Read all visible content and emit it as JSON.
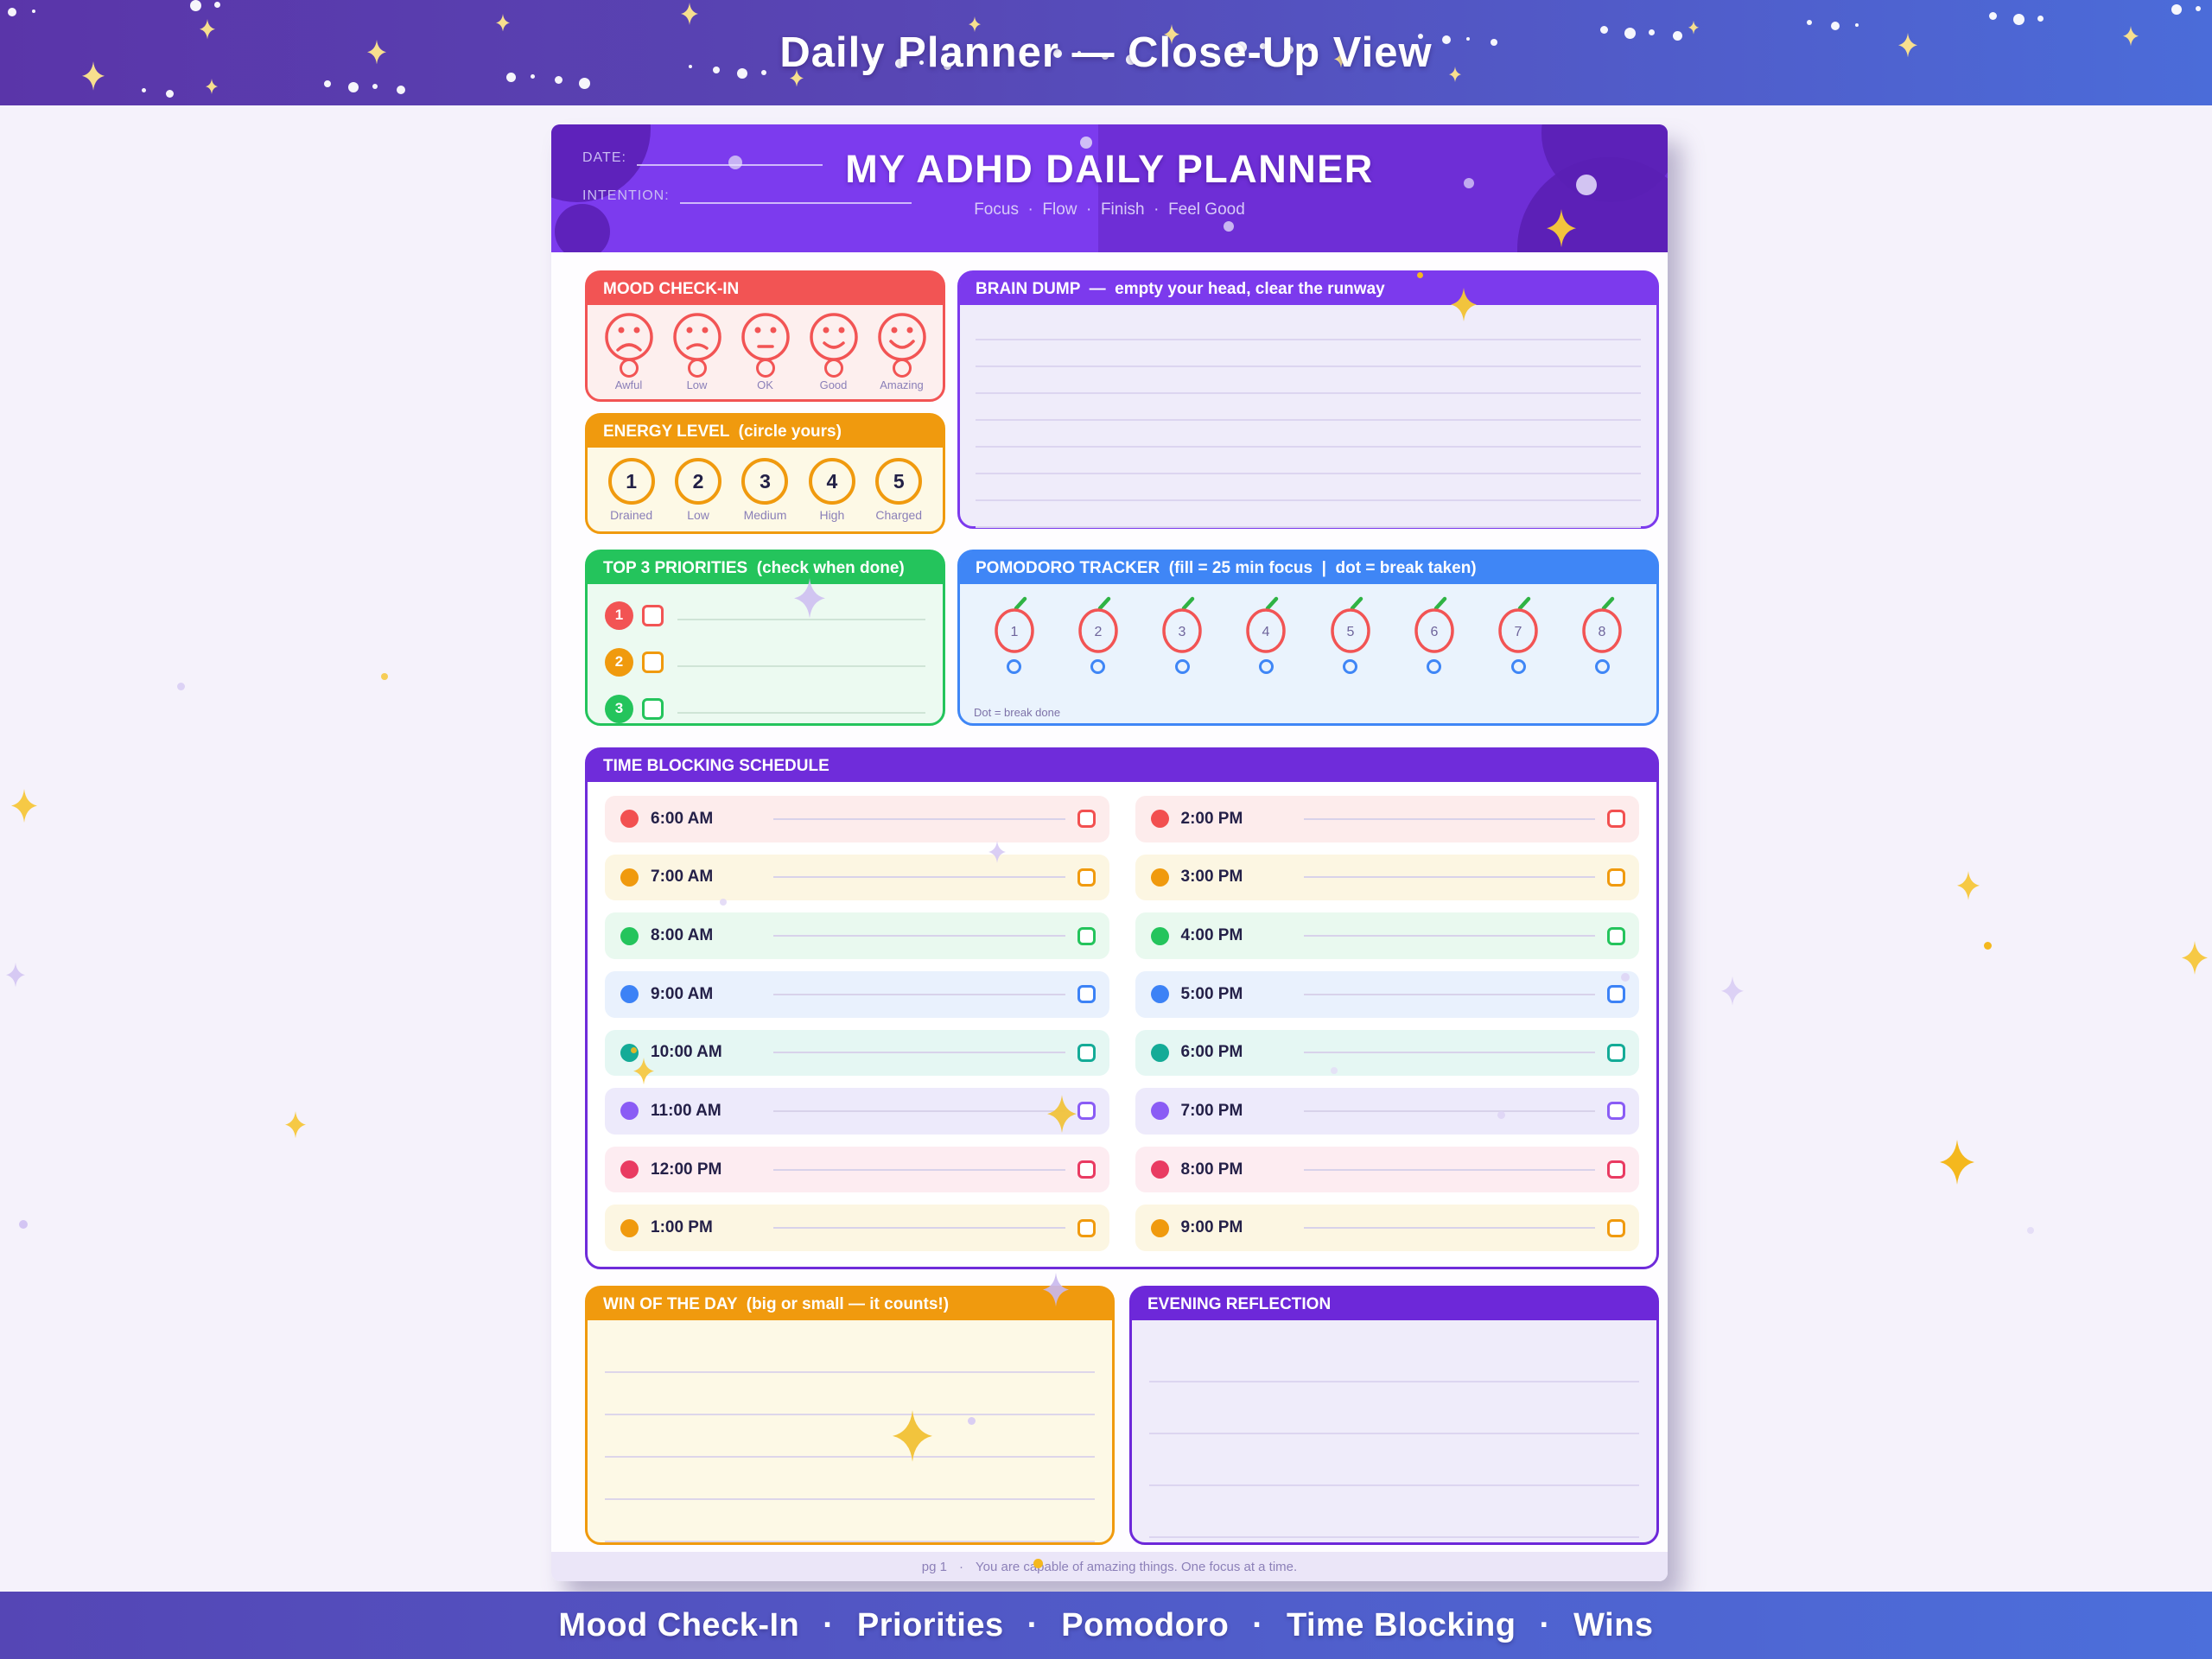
{
  "page": {
    "top_banner": {
      "title": "Daily Planner — Close-Up View"
    },
    "bottom_banner": {
      "separator": "·",
      "items": [
        "Mood Check-In",
        "Priorities",
        "Pomodoro",
        "Time Blocking",
        "Wins"
      ]
    }
  },
  "planner": {
    "header": {
      "date_label": "DATE:",
      "intention_label": "INTENTION:",
      "title": "MY ADHD DAILY PLANNER",
      "tagline": "Focus  ·  Flow  ·  Finish  ·  Feel Good"
    },
    "mood": {
      "title": "MOOD CHECK-IN",
      "accent": "#f25454",
      "options": [
        {
          "label": "Awful",
          "face": "sad"
        },
        {
          "label": "Low",
          "face": "frown"
        },
        {
          "label": "OK",
          "face": "neutral"
        },
        {
          "label": "Good",
          "face": "smile"
        },
        {
          "label": "Amazing",
          "face": "grin"
        }
      ]
    },
    "energy": {
      "title": "ENERGY LEVEL  (circle yours)",
      "accent": "#f09a0e",
      "levels": [
        {
          "value": "1",
          "label": "Drained"
        },
        {
          "value": "2",
          "label": "Low"
        },
        {
          "value": "3",
          "label": "Medium"
        },
        {
          "value": "4",
          "label": "High"
        },
        {
          "value": "5",
          "label": "Charged"
        }
      ]
    },
    "priorities": {
      "title": "TOP 3 PRIORITIES  (check when done)",
      "accent": "#24c45c",
      "items": [
        {
          "number": "1",
          "color": "#f25454"
        },
        {
          "number": "2",
          "color": "#f09a0e"
        },
        {
          "number": "3",
          "color": "#24c45c"
        }
      ]
    },
    "brain_dump": {
      "title": "BRAIN DUMP  —  empty your head, clear the runway",
      "accent": "#7c3aed",
      "lines": 8
    },
    "pomodoro": {
      "title": "POMODORO TRACKER  (fill = 25 min focus  |  dot = break taken)",
      "accent": "#3f86f6",
      "tomato_color": "#f25454",
      "stem_color": "#2fb344",
      "numbers": [
        "1",
        "2",
        "3",
        "4",
        "5",
        "6",
        "7",
        "8"
      ],
      "note": "Dot = break done"
    },
    "schedule": {
      "title": "TIME BLOCKING SCHEDULE",
      "accent": "#6f2cda",
      "rows": [
        {
          "time": "6:00 AM",
          "color": "red"
        },
        {
          "time": "7:00 AM",
          "color": "orange"
        },
        {
          "time": "8:00 AM",
          "color": "green"
        },
        {
          "time": "9:00 AM",
          "color": "blue"
        },
        {
          "time": "10:00 AM",
          "color": "teal"
        },
        {
          "time": "11:00 AM",
          "color": "violet"
        },
        {
          "time": "12:00 PM",
          "color": "rose"
        },
        {
          "time": "1:00 PM",
          "color": "amber"
        },
        {
          "time": "2:00 PM",
          "color": "red"
        },
        {
          "time": "3:00 PM",
          "color": "orange"
        },
        {
          "time": "4:00 PM",
          "color": "green"
        },
        {
          "time": "5:00 PM",
          "color": "blue"
        },
        {
          "time": "6:00 PM",
          "color": "teal"
        },
        {
          "time": "7:00 PM",
          "color": "violet"
        },
        {
          "time": "8:00 PM",
          "color": "rose"
        },
        {
          "time": "9:00 PM",
          "color": "amber"
        }
      ],
      "palette": {
        "red": {
          "dot": "#f25050",
          "bg": "#fdecec"
        },
        "orange": {
          "dot": "#f09a0e",
          "bg": "#fcf6e2"
        },
        "green": {
          "dot": "#24c45c",
          "bg": "#e9f9ef"
        },
        "blue": {
          "dot": "#3c82f6",
          "bg": "#e9f1fd"
        },
        "teal": {
          "dot": "#14ab97",
          "bg": "#e5f7f3"
        },
        "violet": {
          "dot": "#8a5cf5",
          "bg": "#edeafb"
        },
        "rose": {
          "dot": "#e93b62",
          "bg": "#fdecf1"
        },
        "amber": {
          "dot": "#f09a0e",
          "bg": "#fcf6e2"
        }
      }
    },
    "win": {
      "title": "WIN OF THE DAY  (big or small — it counts!)",
      "accent": "#f09a0e",
      "lines": 5
    },
    "reflection": {
      "title": "EVENING REFLECTION",
      "accent": "#6d28d9",
      "lines": 4
    },
    "footer": {
      "page": "pg 1",
      "separator": "·",
      "quote": "You are capable of amazing things. One focus at a time."
    }
  }
}
